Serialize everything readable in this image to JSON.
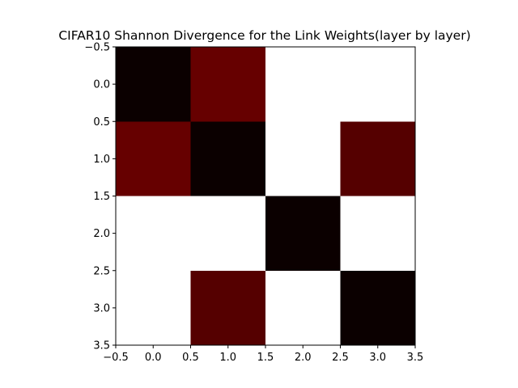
{
  "chart_data": {
    "type": "heatmap",
    "title": "CIFAR10 Shannon Divergence for the Link Weights(layer by layer)",
    "xlabel": "",
    "ylabel": "",
    "x_range": [
      -0.5,
      3.5
    ],
    "y_range": [
      -0.5,
      3.5
    ],
    "y_inverted": true,
    "x_ticks": [
      -0.5,
      0.0,
      0.5,
      1.0,
      1.5,
      2.0,
      2.5,
      3.0,
      3.5
    ],
    "y_ticks": [
      -0.5,
      0.0,
      0.5,
      1.0,
      1.5,
      2.0,
      2.5,
      3.0,
      3.5
    ],
    "x_tick_labels": [
      "−0.5",
      "0.0",
      "0.5",
      "1.0",
      "1.5",
      "2.0",
      "2.5",
      "3.0",
      "3.5"
    ],
    "y_tick_labels": [
      "−0.5",
      "0.0",
      "0.5",
      "1.0",
      "1.5",
      "2.0",
      "2.5",
      "3.0",
      "3.5"
    ],
    "colormap": "hot",
    "grid": false,
    "values": [
      [
        0.0,
        0.27,
        1.0,
        1.0
      ],
      [
        0.27,
        0.0,
        1.0,
        0.22
      ],
      [
        1.0,
        1.0,
        0.0,
        1.0
      ],
      [
        1.0,
        0.22,
        1.0,
        0.0
      ]
    ],
    "cell_colors": [
      [
        "#0b0000",
        "#660000",
        "#ffffff",
        "#ffffff"
      ],
      [
        "#660000",
        "#0b0000",
        "#ffffff",
        "#550000"
      ],
      [
        "#ffffff",
        "#ffffff",
        "#0b0000",
        "#ffffff"
      ],
      [
        "#ffffff",
        "#550000",
        "#ffffff",
        "#0b0000"
      ]
    ]
  }
}
